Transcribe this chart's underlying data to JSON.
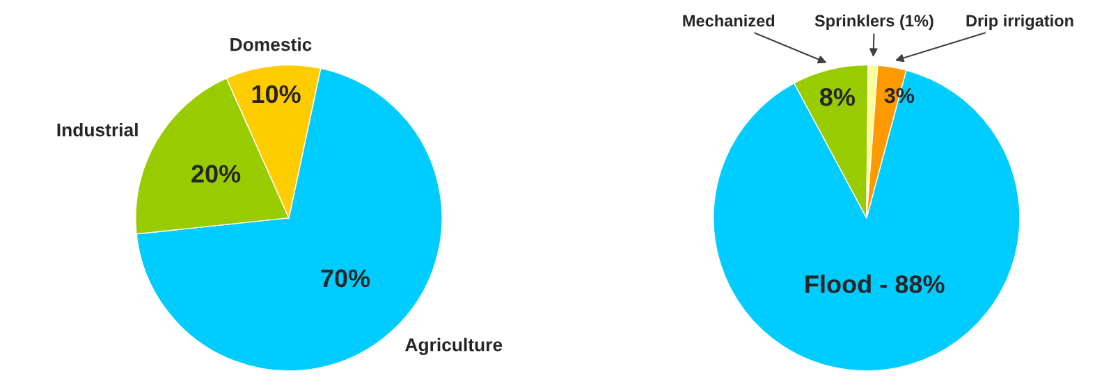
{
  "chart_data": [
    {
      "type": "pie",
      "categories": [
        "Agriculture",
        "Industrial",
        "Domestic"
      ],
      "values": [
        70,
        20,
        10
      ],
      "colors": [
        "#00ccff",
        "#99cc00",
        "#ffcc00"
      ],
      "value_labels": [
        "70%",
        "20%",
        "10%"
      ]
    },
    {
      "type": "pie",
      "categories": [
        "Flood",
        "Mechanized",
        "Sprinklers (1%)",
        "Drip irrigation"
      ],
      "values": [
        88,
        8,
        1,
        3
      ],
      "colors": [
        "#00ccff",
        "#99cc00",
        "#ffff99",
        "#ff9900"
      ],
      "value_labels": [
        "88%",
        "8%",
        null,
        "3%"
      ]
    }
  ]
}
